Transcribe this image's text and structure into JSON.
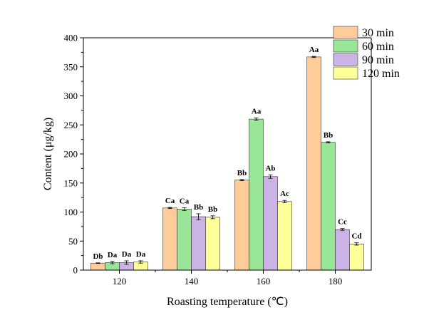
{
  "chart_data": {
    "type": "bar",
    "xlabel": "Roasting temperature (℃)",
    "ylabel": "Content (μg/kg)",
    "ylim": [
      0,
      400
    ],
    "yticks": [
      0,
      50,
      100,
      150,
      200,
      250,
      300,
      350,
      400
    ],
    "categories": [
      "120",
      "140",
      "160",
      "180"
    ],
    "legend_position": "top-right",
    "series": [
      {
        "name": "30 min",
        "color": "#FFCC99",
        "values": [
          12,
          107,
          155,
          367
        ],
        "errors": [
          0.5,
          1,
          1,
          1
        ],
        "labels": [
          "Db",
          "Ca",
          "Bb",
          "Aa"
        ]
      },
      {
        "name": "60 min",
        "color": "#99E699",
        "values": [
          13,
          105,
          260,
          220
        ],
        "errors": [
          2,
          2.5,
          2,
          1
        ],
        "labels": [
          "Da",
          "Ca",
          "Aa",
          "Bb"
        ]
      },
      {
        "name": "90 min",
        "color": "#CCB3E6",
        "values": [
          13,
          92,
          161,
          70
        ],
        "errors": [
          3,
          5,
          3,
          1.5
        ],
        "labels": [
          "Da",
          "Bb",
          "Ab",
          "Cc"
        ]
      },
      {
        "name": "120 min",
        "color": "#FFFF99",
        "values": [
          14,
          91,
          118,
          45
        ],
        "errors": [
          2,
          2.5,
          2,
          2
        ],
        "labels": [
          "Da",
          "Bb",
          "Ac",
          "Cd"
        ]
      }
    ]
  }
}
